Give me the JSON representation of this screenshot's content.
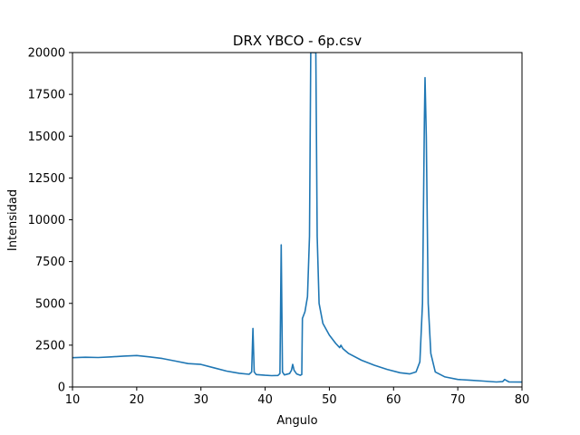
{
  "chart_data": {
    "type": "line",
    "title": "DRX YBCO - 6p.csv",
    "xlabel": "Angulo",
    "ylabel": "Intensidad",
    "xlim": [
      10,
      80
    ],
    "ylim": [
      0,
      20000
    ],
    "xticks": [
      10,
      20,
      30,
      40,
      50,
      60,
      70,
      80
    ],
    "yticks": [
      0,
      2500,
      5000,
      7500,
      10000,
      12500,
      15000,
      17500,
      20000
    ],
    "grid": false,
    "legend": "none",
    "series": [
      {
        "color": "#1f77b4",
        "points": [
          [
            10,
            1750
          ],
          [
            12,
            1780
          ],
          [
            14,
            1760
          ],
          [
            16,
            1800
          ],
          [
            18,
            1850
          ],
          [
            20,
            1880
          ],
          [
            22,
            1800
          ],
          [
            24,
            1700
          ],
          [
            26,
            1550
          ],
          [
            28,
            1400
          ],
          [
            30,
            1350
          ],
          [
            32,
            1150
          ],
          [
            34,
            950
          ],
          [
            36,
            820
          ],
          [
            37.5,
            760
          ],
          [
            37.9,
            900
          ],
          [
            38.1,
            3500
          ],
          [
            38.3,
            900
          ],
          [
            38.6,
            740
          ],
          [
            40,
            700
          ],
          [
            41,
            680
          ],
          [
            42,
            690
          ],
          [
            42.3,
            800
          ],
          [
            42.5,
            8500
          ],
          [
            42.7,
            900
          ],
          [
            43,
            720
          ],
          [
            43.8,
            800
          ],
          [
            44.1,
            1000
          ],
          [
            44.3,
            1350
          ],
          [
            44.5,
            1000
          ],
          [
            44.9,
            780
          ],
          [
            45.5,
            700
          ],
          [
            45.7,
            750
          ],
          [
            45.8,
            4100
          ],
          [
            46.2,
            4500
          ],
          [
            46.6,
            5400
          ],
          [
            46.9,
            9000
          ],
          [
            47.1,
            20000
          ],
          [
            47.9,
            20000
          ],
          [
            48.1,
            9000
          ],
          [
            48.4,
            5000
          ],
          [
            49,
            3800
          ],
          [
            50,
            3100
          ],
          [
            51,
            2600
          ],
          [
            51.6,
            2350
          ],
          [
            51.8,
            2500
          ],
          [
            52.1,
            2300
          ],
          [
            53,
            2000
          ],
          [
            55,
            1600
          ],
          [
            57,
            1300
          ],
          [
            59,
            1050
          ],
          [
            61,
            850
          ],
          [
            62.5,
            780
          ],
          [
            63.5,
            900
          ],
          [
            64.1,
            1500
          ],
          [
            64.5,
            5000
          ],
          [
            64.8,
            16000
          ],
          [
            64.9,
            18500
          ],
          [
            65.1,
            15000
          ],
          [
            65.4,
            5000
          ],
          [
            65.8,
            2000
          ],
          [
            66.5,
            900
          ],
          [
            68,
            600
          ],
          [
            70,
            450
          ],
          [
            72,
            400
          ],
          [
            74,
            350
          ],
          [
            76,
            300
          ],
          [
            77,
            320
          ],
          [
            77.3,
            450
          ],
          [
            77.6,
            380
          ],
          [
            78,
            300
          ],
          [
            80,
            290
          ]
        ]
      }
    ]
  }
}
